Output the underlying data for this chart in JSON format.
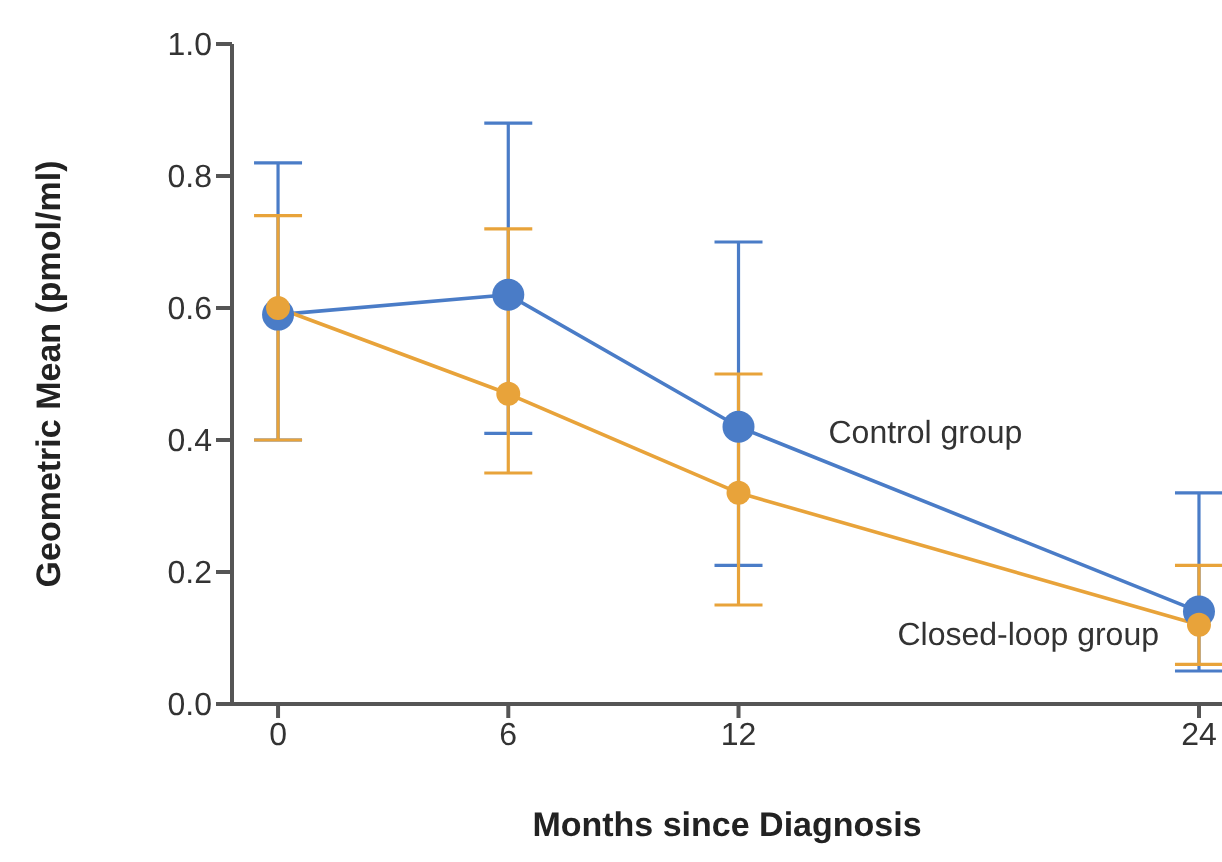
{
  "chart_data": {
    "type": "line",
    "xlabel": "Months since Diagnosis",
    "ylabel": "Geometric Mean (pmol/ml)",
    "x": [
      0,
      6,
      12,
      24
    ],
    "xlim": [
      -1.2,
      24.6
    ],
    "xticks": [
      0,
      6,
      12,
      24
    ],
    "ylim": [
      0,
      1
    ],
    "yticks": [
      {
        "value": 0,
        "label": "0.0"
      },
      {
        "value": 0.2,
        "label": "0.2"
      },
      {
        "value": 0.4,
        "label": "0.4"
      },
      {
        "value": 0.6,
        "label": "0.6"
      },
      {
        "value": 0.8,
        "label": "0.8"
      },
      {
        "value": 1,
        "label": "1.0"
      }
    ],
    "marker": "circle",
    "line_style": "solid",
    "series": [
      {
        "name": "Control group",
        "color": "#4a7cc7",
        "values": [
          0.59,
          0.62,
          0.42,
          0.14
        ],
        "errors": [
          [
            0.4,
            0.82
          ],
          [
            0.41,
            0.88
          ],
          [
            0.21,
            0.7
          ],
          [
            0.05,
            0.32
          ]
        ]
      },
      {
        "name": "Closed-loop group",
        "color": "#e8a33a",
        "values": [
          0.6,
          0.47,
          0.32,
          0.12
        ],
        "errors": [
          [
            0.4,
            0.74
          ],
          [
            0.35,
            0.72
          ],
          [
            0.15,
            0.5
          ],
          [
            0.06,
            0.21
          ]
        ]
      }
    ]
  }
}
